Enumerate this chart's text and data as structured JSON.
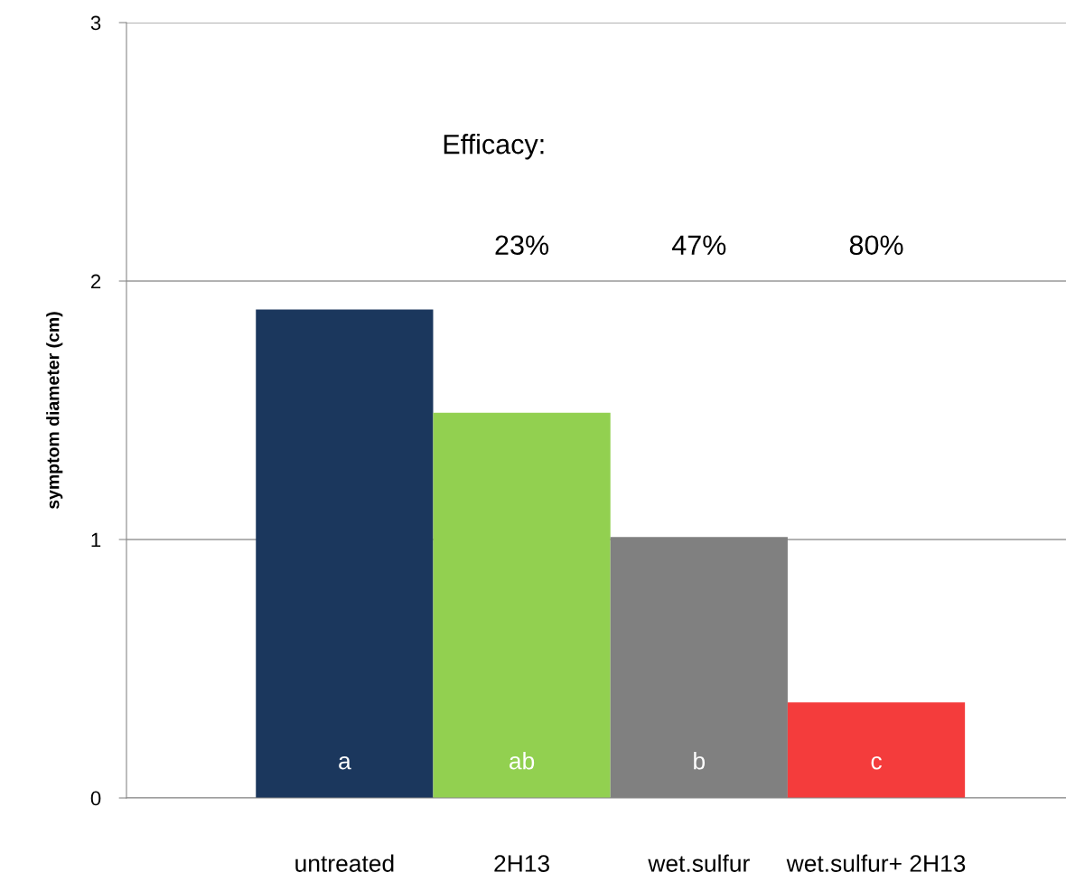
{
  "chart_data": {
    "type": "bar",
    "ylabel": "symptom diameter (cm)",
    "categories": [
      "untreated",
      "2H13",
      "wet.sulfur",
      "wet.sulfur+ 2H13"
    ],
    "values": [
      1.89,
      1.49,
      1.01,
      0.37
    ],
    "colors": [
      "#1b375d",
      "#92d050",
      "#808080",
      "#f43c3c"
    ],
    "ylim": [
      0,
      3
    ],
    "yticks": [
      0,
      1,
      2,
      3
    ],
    "grid": "y",
    "annotations": [
      "Efficacy:",
      "23%",
      "47%",
      "80%",
      "a",
      "ab",
      "b",
      "c"
    ]
  }
}
